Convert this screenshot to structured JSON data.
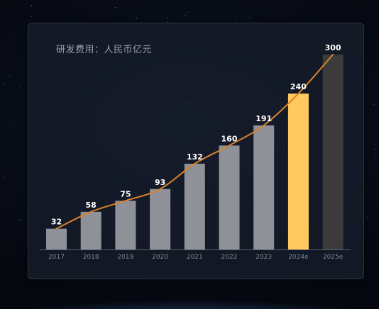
{
  "chart_data": {
    "type": "bar",
    "title": "研发费用：人民币亿元",
    "categories": [
      "2017",
      "2018",
      "2019",
      "2020",
      "2021",
      "2022",
      "2023",
      "2024e",
      "2025e"
    ],
    "values": [
      32,
      58,
      75,
      93,
      132,
      160,
      191,
      240,
      300
    ],
    "data_labels": [
      "32",
      "58",
      "75",
      "93",
      "132",
      "160",
      "191",
      "240",
      "300"
    ],
    "overlay_line": true,
    "colors": {
      "actual": "#8e9197",
      "2024e": "#ffc95e",
      "2025e": "#3b3b3b",
      "line": "#d9822b"
    },
    "ylim": [
      0,
      300
    ],
    "grid": false,
    "legend": "none"
  }
}
